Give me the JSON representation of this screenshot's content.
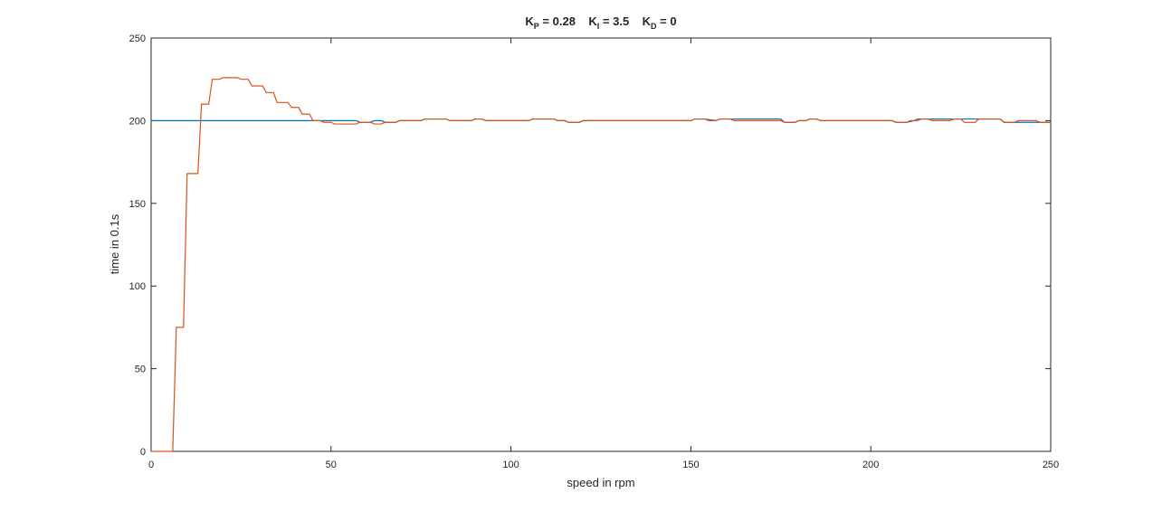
{
  "chart_data": {
    "type": "line",
    "title": {
      "kp_sym": "K",
      "kp_sub": "P",
      "kp_rest": " = 0.28",
      "ki_sym": "K",
      "ki_sub": "I",
      "ki_rest": " = 3.5",
      "kd_sym": "K",
      "kd_sub": "D",
      "kd_rest": " = 0"
    },
    "xlabel": "speed in rpm",
    "ylabel": "time in 0.1s",
    "xlim": [
      0,
      250
    ],
    "ylim": [
      0,
      250
    ],
    "xticks": [
      0,
      50,
      100,
      150,
      200,
      250
    ],
    "yticks": [
      0,
      50,
      100,
      150,
      200,
      250
    ],
    "xtick_labels": [
      "0",
      "50",
      "100",
      "150",
      "200",
      "250"
    ],
    "ytick_labels": [
      "0",
      "50",
      "100",
      "150",
      "200",
      "250"
    ],
    "grid": false,
    "legend": "none",
    "series": [
      {
        "color": "#0072BD",
        "x": [
          0,
          44,
          44.5,
          50,
          57,
          58,
          61,
          62,
          64,
          65,
          68,
          69,
          75,
          76,
          82,
          83,
          89,
          90,
          92,
          93,
          105,
          106,
          112,
          113,
          115,
          116,
          119,
          120,
          150,
          151,
          154,
          157,
          158,
          161,
          175,
          176,
          179,
          180,
          182,
          183,
          185,
          186,
          206,
          207,
          210,
          212,
          213,
          216,
          222,
          223,
          226,
          227,
          230,
          236,
          237,
          240,
          246,
          247,
          250
        ],
        "y": [
          200,
          200,
          200,
          200,
          200,
          199,
          199,
          200,
          200,
          199,
          199,
          200,
          200,
          201,
          201,
          200,
          200,
          201,
          201,
          200,
          200,
          201,
          201,
          200,
          200,
          199,
          199,
          200,
          200,
          201,
          201,
          200,
          201,
          201,
          201,
          199,
          199,
          200,
          200,
          201,
          201,
          200,
          200,
          199,
          199,
          200,
          201,
          201,
          201,
          201,
          201,
          201,
          201,
          201,
          199,
          199,
          199,
          199,
          199
        ]
      },
      {
        "color": "#D95319",
        "x": [
          0,
          6,
          7,
          9,
          10,
          13,
          14,
          16,
          17,
          19,
          20,
          24,
          25,
          27,
          28,
          31,
          32,
          34,
          35,
          38,
          39,
          41,
          42,
          44,
          45,
          47,
          48,
          50,
          51,
          57,
          58,
          61,
          62,
          64,
          65,
          68,
          69,
          75,
          76,
          82,
          83,
          89,
          90,
          92,
          93,
          105,
          106,
          112,
          113,
          115,
          116,
          119,
          120,
          150,
          151,
          154,
          155,
          157,
          158,
          161,
          162,
          175,
          176,
          179,
          180,
          182,
          183,
          185,
          186,
          206,
          207,
          210,
          211,
          213,
          214,
          216,
          217,
          222,
          223,
          225,
          226,
          229,
          230,
          236,
          237,
          240,
          241,
          246,
          247,
          250
        ],
        "y": [
          0,
          0,
          75,
          75,
          168,
          168,
          210,
          210,
          225,
          225,
          226,
          226,
          225,
          225,
          221,
          221,
          217,
          217,
          211,
          211,
          208,
          208,
          204,
          204,
          200,
          200,
          199,
          199,
          198,
          198,
          199,
          199,
          198,
          198,
          199,
          199,
          200,
          200,
          201,
          201,
          200,
          200,
          201,
          201,
          200,
          200,
          201,
          201,
          200,
          200,
          199,
          199,
          200,
          200,
          201,
          201,
          200,
          200,
          201,
          201,
          200,
          200,
          199,
          199,
          200,
          200,
          201,
          201,
          200,
          200,
          199,
          199,
          200,
          200,
          201,
          201,
          200,
          200,
          201,
          201,
          199,
          199,
          201,
          201,
          199,
          199,
          200,
          200,
          199,
          199
        ]
      }
    ]
  }
}
